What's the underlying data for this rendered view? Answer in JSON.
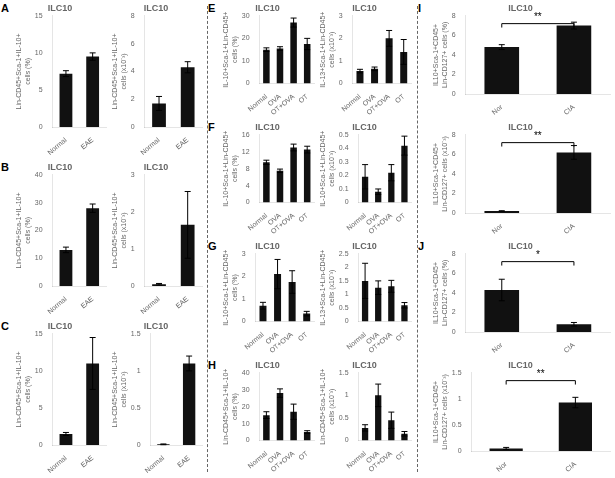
{
  "chart_data": [
    {
      "type": "bar",
      "title": "ILC10",
      "ylabel": "Lin-CD45+Sca-1+IL-10+ cells (%)",
      "categories": [
        "Normal",
        "EAE"
      ],
      "values": [
        7.2,
        9.5
      ],
      "errors": [
        0.4,
        0.5
      ],
      "color": "#111111",
      "ylim": [
        0,
        15
      ],
      "yticks": [
        0,
        5,
        10,
        15
      ],
      "grid": false,
      "annotations": [
        {
          "text": "A"
        }
      ]
    },
    {
      "type": "bar",
      "title": "ILC10",
      "ylabel": "Lin-CD45+Sca-1+IL-10+ cells (x10⁻³)",
      "categories": [
        "Normal",
        "EAE"
      ],
      "values": [
        1.7,
        4.3
      ],
      "errors": [
        0.5,
        0.4
      ],
      "color": "#111111",
      "ylim": [
        0,
        8
      ],
      "yticks": [
        0,
        2,
        4,
        6,
        8
      ],
      "grid": false
    },
    {
      "type": "bar",
      "title": "ILC10",
      "ylabel": "Lin-CD45+Sca-1+IL-10+ cells (%)",
      "categories": [
        "Normal",
        "EAE"
      ],
      "values": [
        13.0,
        28.0
      ],
      "errors": [
        1.0,
        1.5
      ],
      "color": "#111111",
      "ylim": [
        0,
        40
      ],
      "yticks": [
        0,
        10,
        20,
        30,
        40
      ],
      "grid": false,
      "annotations": [
        {
          "text": "B"
        }
      ]
    },
    {
      "type": "bar",
      "title": "ILC10",
      "ylabel": "Lin-CD45+Sca-1+IL-10+ cells (x10⁻³)",
      "categories": [
        "Normal",
        "EAE"
      ],
      "values": [
        0.05,
        1.65
      ],
      "errors": [
        0.02,
        0.9
      ],
      "color": "#111111",
      "ylim": [
        0,
        3
      ],
      "yticks": [
        0,
        1,
        2,
        3
      ],
      "grid": false
    },
    {
      "type": "bar",
      "title": "ILC10",
      "ylabel": "Lin-CD45+Sca-1+IL-10+ cells (%)",
      "categories": [
        "Normal",
        "EAE"
      ],
      "values": [
        1.5,
        11.0
      ],
      "errors": [
        0.2,
        3.5
      ],
      "color": "#111111",
      "ylim": [
        0,
        15
      ],
      "yticks": [
        0,
        5,
        10,
        15
      ],
      "grid": false,
      "annotations": [
        {
          "text": "C"
        }
      ]
    },
    {
      "type": "bar",
      "title": "ILC10",
      "ylabel": "Lin-CD45+Sca-1+IL-10+ cells (x10⁻³)",
      "categories": [
        "Normal",
        "EAE"
      ],
      "values": [
        0.01,
        1.1
      ],
      "errors": [
        0.005,
        0.1
      ],
      "color": "#111111",
      "ylim": [
        0,
        1.5
      ],
      "yticks": [
        0,
        0.5,
        1,
        1.5
      ],
      "grid": false
    },
    {
      "type": "bar",
      "title": "ILC10",
      "ylabel": "IL-10+Sca-1+Lin-CD45+ cells (%)",
      "categories": [
        "Normal",
        "OVA",
        "OT+OVA",
        "OT"
      ],
      "values": [
        15.0,
        15.5,
        27.0,
        17.5
      ],
      "errors": [
        0.8,
        0.8,
        2.0,
        2.5
      ],
      "color": "#111111",
      "ylim": [
        0,
        30
      ],
      "yticks": [
        0,
        10,
        20,
        30
      ],
      "grid": false,
      "annotations": [
        {
          "text": "E"
        }
      ]
    },
    {
      "type": "bar",
      "title": "ILC10",
      "ylabel": "IL-13+Sca-1+Lin-CD45+ cells (x10⁻³)",
      "categories": [
        "Normal",
        "OVA",
        "OT+OVA",
        "OT"
      ],
      "values": [
        0.55,
        0.65,
        2.0,
        1.4
      ],
      "errors": [
        0.08,
        0.08,
        0.35,
        0.55
      ],
      "color": "#111111",
      "ylim": [
        0,
        3
      ],
      "yticks": [
        0,
        1,
        2,
        3
      ],
      "grid": false
    },
    {
      "type": "bar",
      "title": "ILC10",
      "ylabel": "IL-10+Sca-1+Lin-CD45+ cells (%)",
      "categories": [
        "Normal",
        "OVA",
        "OT+OVA",
        "OT"
      ],
      "values": [
        9.5,
        7.5,
        13.0,
        12.5
      ],
      "errors": [
        0.5,
        0.4,
        0.8,
        0.8
      ],
      "color": "#111111",
      "ylim": [
        0,
        16
      ],
      "yticks": [
        0,
        4,
        8,
        12,
        16
      ],
      "grid": false,
      "annotations": [
        {
          "text": "F"
        }
      ]
    },
    {
      "type": "bar",
      "title": "ILC10",
      "ylabel": "IL-10+Sca-1+Lin-CD45+ cells (x10⁻³)",
      "categories": [
        "Normal",
        "OVA",
        "OT+OVA",
        "OT"
      ],
      "values": [
        0.19,
        0.08,
        0.22,
        0.42
      ],
      "errors": [
        0.09,
        0.02,
        0.06,
        0.07
      ],
      "color": "#111111",
      "ylim": [
        0,
        0.5
      ],
      "yticks": [
        0,
        0.1,
        0.2,
        0.3,
        0.4,
        0.5
      ],
      "grid": false
    },
    {
      "type": "bar",
      "title": "ILC10",
      "ylabel": "IL-10+Sca-1+Lin-CD45+ cells (%)",
      "categories": [
        "Normal",
        "OVA",
        "OT+OVA",
        "OT"
      ],
      "values": [
        0.7,
        2.1,
        1.75,
        0.35
      ],
      "errors": [
        0.15,
        0.65,
        0.5,
        0.1
      ],
      "color": "#111111",
      "ylim": [
        0,
        3
      ],
      "yticks": [
        0,
        1,
        2,
        3
      ],
      "grid": false,
      "annotations": [
        {
          "text": "G"
        }
      ]
    },
    {
      "type": "bar",
      "title": "ILC10",
      "ylabel": "IL-13+Sca-1+Lin-CD45+ cells (x10⁻³)",
      "categories": [
        "Normal",
        "OVA",
        "OT+OVA",
        "OT"
      ],
      "values": [
        1.5,
        1.25,
        1.3,
        0.6
      ],
      "errors": [
        0.65,
        0.25,
        0.22,
        0.1
      ],
      "color": "#111111",
      "ylim": [
        0,
        2.5
      ],
      "yticks": [
        0,
        0.5,
        1,
        1.5,
        2,
        2.5
      ],
      "grid": false
    },
    {
      "type": "bar",
      "title": "ILC10",
      "ylabel": "Lin-CD45+Sca-1+IL-10+ cells (%)",
      "categories": [
        "Normal",
        "OVA",
        "OT+OVA",
        "OT"
      ],
      "values": [
        15.0,
        28.0,
        17.0,
        5.0
      ],
      "errors": [
        2.0,
        2.5,
        4.5,
        0.8
      ],
      "color": "#111111",
      "ylim": [
        0,
        40
      ],
      "yticks": [
        0,
        10,
        20,
        30,
        40
      ],
      "grid": false,
      "annotations": [
        {
          "text": "H"
        }
      ]
    },
    {
      "type": "bar",
      "title": "ILC10",
      "ylabel": "Lin-CD45+Sca-1+IL-10+ cells (x10⁻³)",
      "categories": [
        "Normal",
        "OVA",
        "OT+OVA",
        "OT"
      ],
      "values": [
        0.28,
        1.0,
        0.45,
        0.15
      ],
      "errors": [
        0.07,
        0.25,
        0.18,
        0.05
      ],
      "color": "#111111",
      "ylim": [
        0,
        1.5
      ],
      "yticks": [
        0,
        0.5,
        1,
        1.5
      ],
      "grid": false
    },
    {
      "type": "bar",
      "title": "ILC10",
      "ylabel": "IL10+Sca-1+CD45+\nLin-CD127+ cells (%)",
      "categories": [
        "Nor",
        "CIA"
      ],
      "values": [
        4.8,
        7.0
      ],
      "errors": [
        0.25,
        0.35
      ],
      "color": "#111111",
      "ylim": [
        0,
        8
      ],
      "yticks": [
        0,
        2,
        4,
        6,
        8
      ],
      "grid": false,
      "annotations": [
        {
          "text": "I"
        },
        {
          "text": "**",
          "between": [
            "Nor",
            "CIA"
          ]
        }
      ]
    },
    {
      "type": "bar",
      "title": "ILC10",
      "ylabel": "IL10+Sca-1+CD45+\nLin-CD127+ cells (x10⁻³)",
      "categories": [
        "Nor",
        "CIA"
      ],
      "values": [
        0.2,
        6.2
      ],
      "errors": [
        0.04,
        0.7
      ],
      "color": "#111111",
      "ylim": [
        0,
        8
      ],
      "yticks": [
        0,
        2,
        4,
        6,
        8
      ],
      "grid": false,
      "annotations": [
        {
          "text": "**",
          "between": [
            "Nor",
            "CIA"
          ]
        }
      ]
    },
    {
      "type": "bar",
      "title": "ILC10",
      "ylabel": "IL10+Sca-1+CD45+\nLin-CD127+ cells (%)",
      "categories": [
        "Nor",
        "CIA"
      ],
      "values": [
        4.3,
        0.8
      ],
      "errors": [
        1.1,
        0.18
      ],
      "color": "#111111",
      "ylim": [
        0,
        8
      ],
      "yticks": [
        0,
        2,
        4,
        6,
        8
      ],
      "grid": false,
      "annotations": [
        {
          "text": "J"
        },
        {
          "text": "*",
          "between": [
            "Nor",
            "CIA"
          ]
        }
      ]
    },
    {
      "type": "bar",
      "title": "ILC10",
      "ylabel": "IL10+Sca-1+CD45+\nLin-CD127+ cells (x10⁻³)",
      "categories": [
        "Nor",
        "CIA"
      ],
      "values": [
        0.05,
        0.93
      ],
      "errors": [
        0.02,
        0.1
      ],
      "color": "#111111",
      "ylim": [
        0,
        1.5
      ],
      "yticks": [
        0,
        0.5,
        1,
        1.5
      ],
      "grid": false,
      "annotations": [
        {
          "text": "**",
          "between": [
            "Nor",
            "CIA"
          ]
        }
      ]
    }
  ]
}
